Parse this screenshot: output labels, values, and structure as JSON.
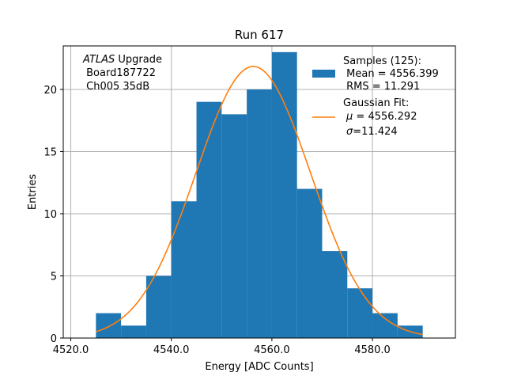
{
  "chart_data": {
    "type": "bar",
    "title": "Run 617",
    "xlabel": "Energy [ADC Counts]",
    "ylabel": "Entries",
    "xlim": [
      4518.5,
      4596.5
    ],
    "ylim": [
      0,
      23.5
    ],
    "xticks": [
      4520,
      4540,
      4560,
      4580
    ],
    "xtick_labels": [
      "4520.0",
      "4540.0",
      "4560.0",
      "4580.0"
    ],
    "yticks": [
      0,
      5,
      10,
      15,
      20
    ],
    "yticks_labels": [
      "0",
      "5",
      "10",
      "15",
      "20"
    ],
    "grid": true,
    "bins": [
      {
        "x0": 4525,
        "x1": 4530,
        "count": 2
      },
      {
        "x0": 4530,
        "x1": 4535,
        "count": 1
      },
      {
        "x0": 4535,
        "x1": 4540,
        "count": 5
      },
      {
        "x0": 4540,
        "x1": 4545,
        "count": 11
      },
      {
        "x0": 4545,
        "x1": 4550,
        "count": 19
      },
      {
        "x0": 4550,
        "x1": 4555,
        "count": 18
      },
      {
        "x0": 4555,
        "x1": 4560,
        "count": 20
      },
      {
        "x0": 4560,
        "x1": 4565,
        "count": 23
      },
      {
        "x0": 4565,
        "x1": 4570,
        "count": 12
      },
      {
        "x0": 4570,
        "x1": 4575,
        "count": 7
      },
      {
        "x0": 4575,
        "x1": 4580,
        "count": 4
      },
      {
        "x0": 4580,
        "x1": 4585,
        "count": 2
      },
      {
        "x0": 4585,
        "x1": 4590,
        "count": 1
      }
    ],
    "fit": {
      "name": "Gaussian Fit",
      "mu": 4556.292,
      "sigma": 11.424,
      "amplitude": 21.85,
      "x_range": [
        4525,
        4590
      ]
    },
    "colors": {
      "hist": "#1f77b4",
      "fit": "#ff7f0e"
    },
    "annotation": {
      "italic": "ATLAS",
      "line1_rest": " Upgrade",
      "line2": " Board187722",
      "line3": " Ch005 35dB"
    },
    "legend": {
      "position": "top-right",
      "samples_line1": "Samples (125):",
      "samples_line2": " Mean = 4556.399",
      "samples_line3": " RMS = 11.291",
      "fit_line1": "Gaussian Fit:",
      "fit_line2": " = 4556.292",
      "fit_line3": "=11.424",
      "mu_symbol": "μ",
      "sigma_symbol": "σ"
    }
  }
}
